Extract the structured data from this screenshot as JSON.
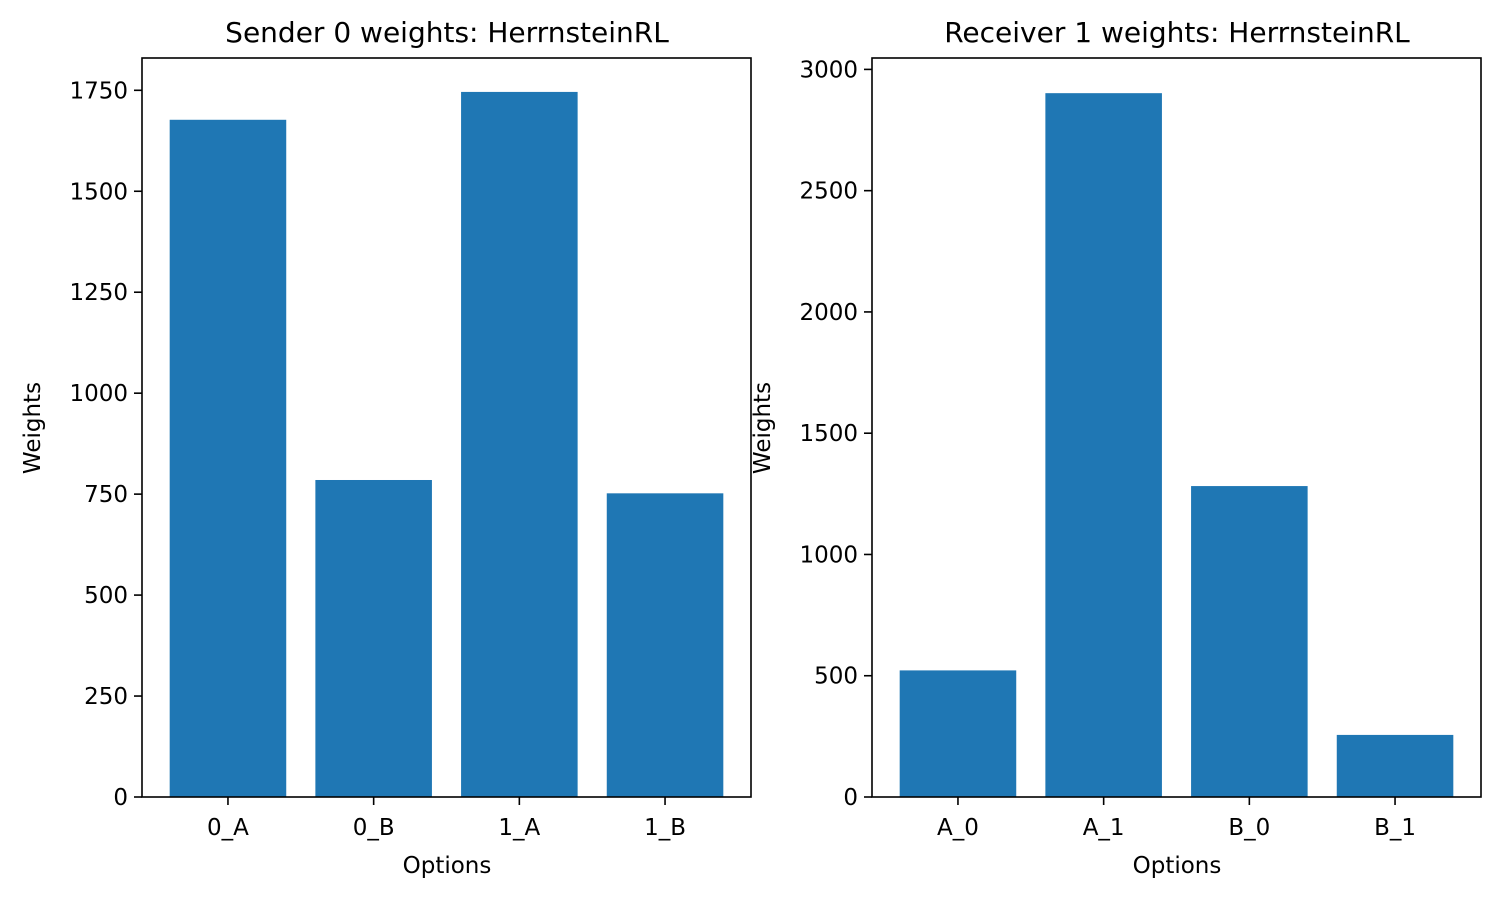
{
  "colors": {
    "bar": "#1f77b4",
    "axis": "#000000",
    "background": "#ffffff"
  },
  "chart_data": [
    {
      "type": "bar",
      "title": "Sender 0 weights: HerrnsteinRL",
      "xlabel": "Options",
      "ylabel": "Weights",
      "categories": [
        "0_A",
        "0_B",
        "1_A",
        "1_B"
      ],
      "values": [
        1677,
        785,
        1746,
        752
      ],
      "ylim": [
        0,
        1830
      ],
      "yticks": [
        0,
        250,
        500,
        750,
        1000,
        1250,
        1500,
        1750
      ],
      "grid": false
    },
    {
      "type": "bar",
      "title": "Receiver 1 weights: HerrnsteinRL",
      "xlabel": "Options",
      "ylabel": "Weights",
      "categories": [
        "A_0",
        "A_1",
        "B_0",
        "B_1"
      ],
      "values": [
        522,
        2902,
        1282,
        256
      ],
      "ylim": [
        0,
        3047
      ],
      "yticks": [
        0,
        500,
        1000,
        1500,
        2000,
        2500,
        3000
      ],
      "grid": false
    }
  ]
}
